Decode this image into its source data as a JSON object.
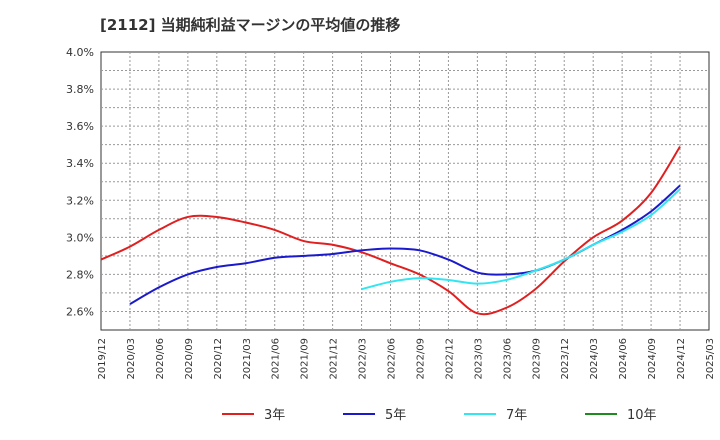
{
  "chart_data": {
    "type": "line",
    "title": "[2112]  当期純利益マージンの平均値の推移",
    "x_tick_labels": [
      "2019/12",
      "2020/03",
      "2020/06",
      "2020/09",
      "2020/12",
      "2021/03",
      "2021/06",
      "2021/09",
      "2021/12",
      "2022/03",
      "2022/06",
      "2022/09",
      "2022/12",
      "2023/03",
      "2023/06",
      "2023/09",
      "2023/12",
      "2024/03",
      "2024/06",
      "2024/09",
      "2024/12",
      "2025/03"
    ],
    "y_tick_labels": [
      "2.6%",
      "2.8%",
      "3.0%",
      "3.2%",
      "3.4%",
      "3.6%",
      "3.8%",
      "4.0%"
    ],
    "ylim": [
      2.5,
      4.0
    ],
    "y_unit": "%",
    "grid": true,
    "legend_position": "bottom",
    "series": [
      {
        "name": "3年",
        "color": "#e02020",
        "x": [
          "2019/12",
          "2020/03",
          "2020/06",
          "2020/09",
          "2020/12",
          "2021/03",
          "2021/06",
          "2021/09",
          "2021/12",
          "2022/03",
          "2022/06",
          "2022/09",
          "2022/12",
          "2023/03",
          "2023/06",
          "2023/09",
          "2023/12",
          "2024/03",
          "2024/06",
          "2024/09",
          "2024/12"
        ],
        "values": [
          2.88,
          2.95,
          3.04,
          3.11,
          3.11,
          3.08,
          3.04,
          2.98,
          2.96,
          2.92,
          2.86,
          2.8,
          2.71,
          2.59,
          2.62,
          2.72,
          2.87,
          3.0,
          3.09,
          3.24,
          3.49
        ]
      },
      {
        "name": "5年",
        "color": "#1a1acc",
        "x": [
          "2020/03",
          "2020/06",
          "2020/09",
          "2020/12",
          "2021/03",
          "2021/06",
          "2021/09",
          "2021/12",
          "2022/03",
          "2022/06",
          "2022/09",
          "2022/12",
          "2023/03",
          "2023/06",
          "2023/09",
          "2023/12",
          "2024/03",
          "2024/06",
          "2024/09",
          "2024/12"
        ],
        "values": [
          2.64,
          2.73,
          2.8,
          2.84,
          2.86,
          2.89,
          2.9,
          2.91,
          2.93,
          2.94,
          2.93,
          2.88,
          2.81,
          2.8,
          2.82,
          2.88,
          2.96,
          3.04,
          3.14,
          3.28
        ]
      },
      {
        "name": "7年",
        "color": "#33e5f0",
        "x": [
          "2022/03",
          "2022/06",
          "2022/09",
          "2022/12",
          "2023/03",
          "2023/06",
          "2023/09",
          "2023/12",
          "2024/03",
          "2024/06",
          "2024/09",
          "2024/12"
        ],
        "values": [
          2.72,
          2.76,
          2.78,
          2.77,
          2.75,
          2.77,
          2.82,
          2.88,
          2.96,
          3.03,
          3.12,
          3.26
        ]
      },
      {
        "name": "10年",
        "color": "#1f8a1f",
        "x": [],
        "values": []
      }
    ]
  }
}
